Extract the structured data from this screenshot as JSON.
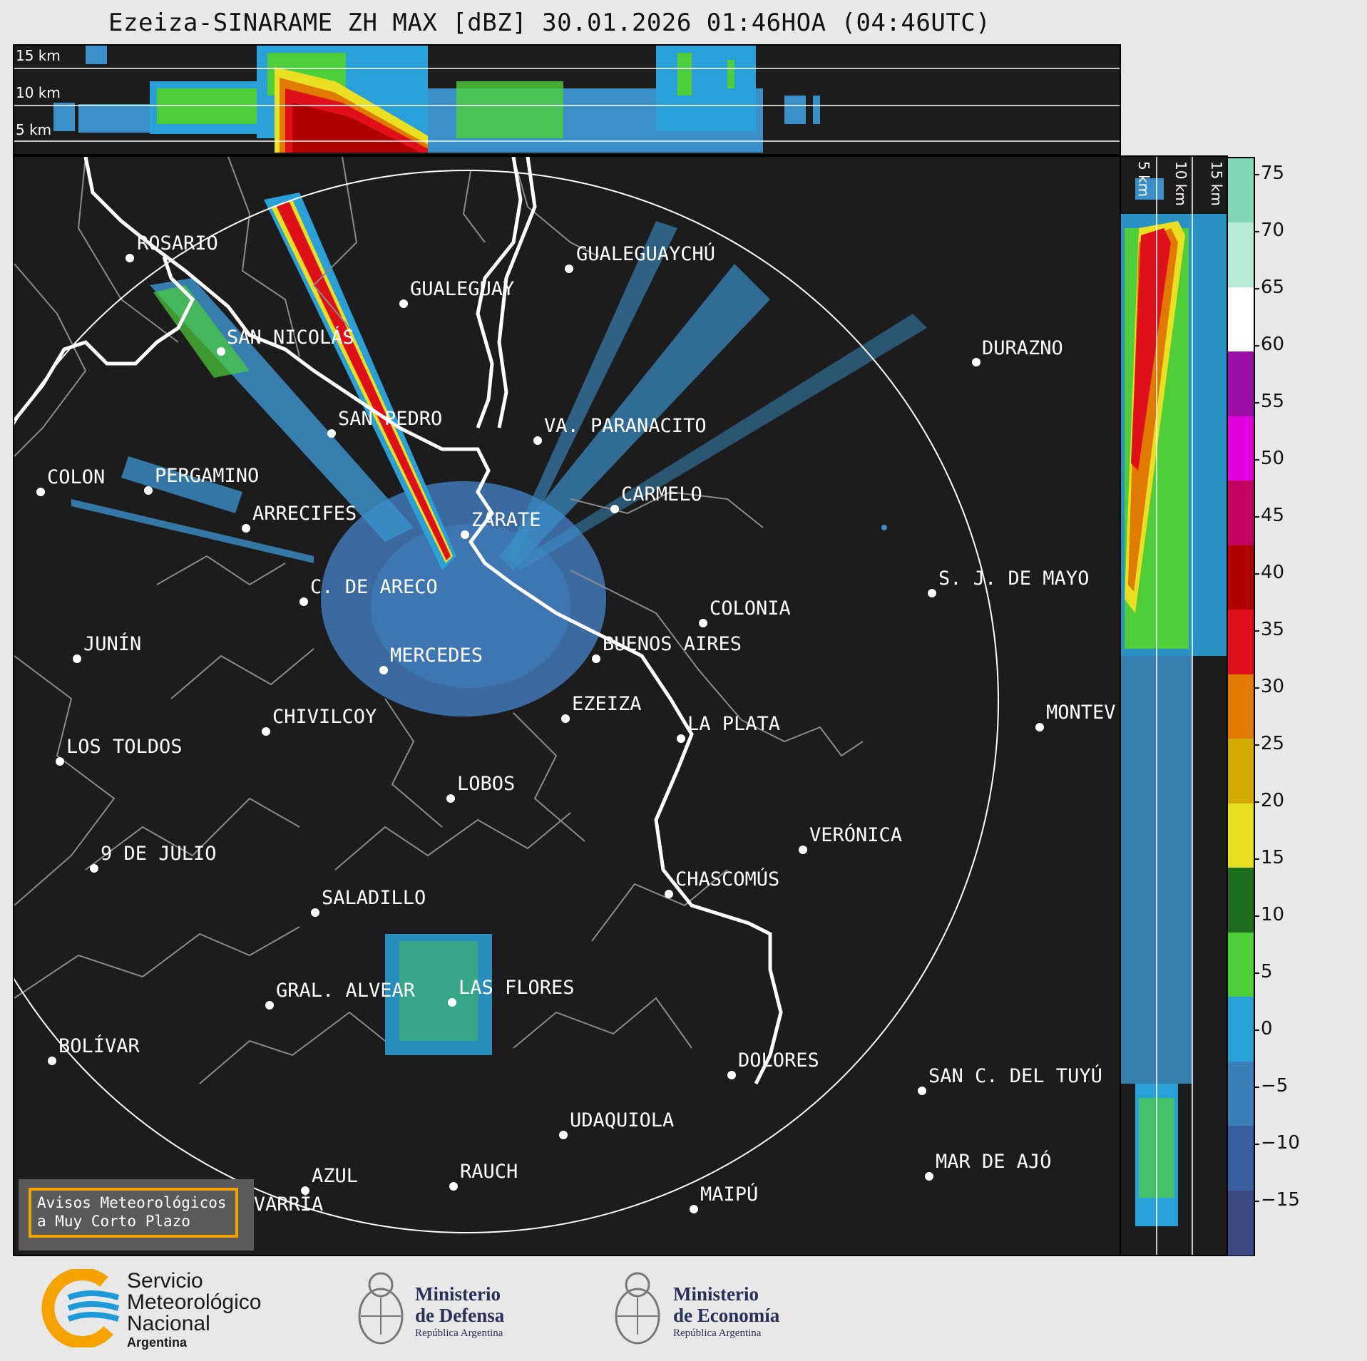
{
  "title": "Ezeiza-SINARAME ZH MAX [dBZ] 30.01.2026 01:46HOA (04:46UTC)",
  "top_panel": {
    "height_labels": [
      "15 km",
      "10 km",
      "5 km"
    ]
  },
  "side_panel": {
    "height_labels": [
      "5 km",
      "10 km",
      "15 km"
    ]
  },
  "colorbar": {
    "unit": "dBZ",
    "ticks": [
      "75",
      "70",
      "65",
      "60",
      "55",
      "50",
      "45",
      "40",
      "35",
      "30",
      "25",
      "20",
      "15",
      "10",
      "5",
      "0",
      "−5",
      "−10",
      "−15"
    ],
    "colors": [
      "#7fd9b7",
      "#b8ebd6",
      "#ffffff",
      "#9b0fa6",
      "#e000e0",
      "#c40060",
      "#b00000",
      "#e0101a",
      "#e07a00",
      "#d2aa00",
      "#e8e020",
      "#1e6e1e",
      "#4ecf3a",
      "#2aa0d8",
      "#3a7fb8",
      "#3a5fa0",
      "#3b4a80"
    ]
  },
  "cities": [
    {
      "name": "ROSARIO"
    },
    {
      "name": "GUALEGUAYCHÚ"
    },
    {
      "name": "GUALEGUAY"
    },
    {
      "name": "SAN NICOLÁS"
    },
    {
      "name": "DURAZNO"
    },
    {
      "name": "SAN PEDRO"
    },
    {
      "name": "VA. PARANACITO"
    },
    {
      "name": "COLON"
    },
    {
      "name": "PERGAMINO"
    },
    {
      "name": "CARMELO"
    },
    {
      "name": "ARRECIFES"
    },
    {
      "name": "ZÁRATE"
    },
    {
      "name": "S. J. DE MAYO"
    },
    {
      "name": "C. DE ARECO"
    },
    {
      "name": "COLONIA"
    },
    {
      "name": "JUNÍN"
    },
    {
      "name": "BUENOS AIRES"
    },
    {
      "name": "MERCEDES"
    },
    {
      "name": "MONTEV"
    },
    {
      "name": "EZEIZA"
    },
    {
      "name": "CHIVILCOY"
    },
    {
      "name": "LA PLATA"
    },
    {
      "name": "LOS TOLDOS"
    },
    {
      "name": "LOBOS"
    },
    {
      "name": "VERÓNICA"
    },
    {
      "name": "9 DE JULIO"
    },
    {
      "name": "CHASCOMÚS"
    },
    {
      "name": "SALADILLO"
    },
    {
      "name": "GRAL. ALVEAR"
    },
    {
      "name": "LAS FLORES"
    },
    {
      "name": "BOLÍVAR"
    },
    {
      "name": "DOLORES"
    },
    {
      "name": "SAN C. DEL TUYÚ"
    },
    {
      "name": "UDAQUIOLA"
    },
    {
      "name": "MAR DE AJÓ"
    },
    {
      "name": "AZUL"
    },
    {
      "name": "RAUCH"
    },
    {
      "name": "MAIPÚ"
    },
    {
      "name": "OLAVARRÍA"
    }
  ],
  "notice": {
    "line1": "Avisos Meteorológicos",
    "line2": "a Muy Corto Plazo",
    "accent": "#f5a300"
  },
  "logos": {
    "smn": {
      "line1": "Servicio",
      "line2": "Meteorológico",
      "line3": "Nacional",
      "line4": "Argentina"
    },
    "defensa": {
      "line1": "Ministerio",
      "line2": "de Defensa",
      "line3": "República Argentina"
    },
    "economia": {
      "line1": "Ministerio",
      "line2": "de Economía",
      "line3": "República Argentina"
    }
  }
}
